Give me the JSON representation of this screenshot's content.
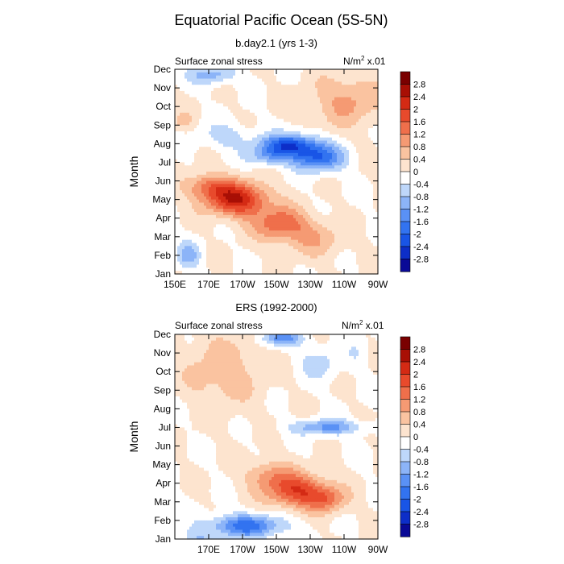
{
  "title": "Equatorial Pacific Ocean (5S-5N)",
  "units_base": "N/m",
  "units_exp": "2",
  "units_scale": " x.01",
  "colors": [
    "#0a0a96",
    "#0d2ec8",
    "#1955e6",
    "#3273f0",
    "#5a91f5",
    "#8cb4f8",
    "#bed7fa",
    "#ffffff",
    "#fde4cf",
    "#fac3a0",
    "#f59a73",
    "#ef6f4b",
    "#e84a2c",
    "#d42a14",
    "#a80f05",
    "#7a0000"
  ],
  "colorbar_labels": [
    "2.8",
    "2.4",
    "2",
    "1.6",
    "1.2",
    "0.8",
    "0.4",
    "0",
    "-0.4",
    "-0.8",
    "-1.2",
    "-1.6",
    "-2",
    "-2.4",
    "-2.8"
  ],
  "chart_data": [
    {
      "type": "heatmap",
      "subtitle": "b.day2.1 (yrs 1-3)",
      "left_label": "Surface zonal stress",
      "ylabel": "Month",
      "y_ticks": [
        "Jan",
        "Feb",
        "Mar",
        "Apr",
        "May",
        "Jun",
        "Jul",
        "Aug",
        "Sep",
        "Oct",
        "Nov",
        "Dec"
      ],
      "x_ticks": [
        "150E",
        "170E",
        "170W",
        "150W",
        "130W",
        "110W",
        "90W"
      ],
      "x_range": [
        150,
        270
      ],
      "y_range": [
        1,
        12
      ],
      "levels": [
        -2.8,
        -2.4,
        -2.0,
        -1.6,
        -1.2,
        -0.8,
        -0.4,
        0,
        0.4,
        0.8,
        1.2,
        1.6,
        2.0,
        2.4,
        2.8
      ],
      "features": [
        {
          "lon": 187,
          "month": 5.0,
          "amp": 2.3,
          "wlon": 18,
          "wmonth": 0.9
        },
        {
          "lon": 212,
          "month": 3.7,
          "amp": 1.4,
          "wlon": 16,
          "wmonth": 0.9
        },
        {
          "lon": 232,
          "month": 2.9,
          "amp": 0.7,
          "wlon": 18,
          "wmonth": 1.0
        },
        {
          "lon": 170,
          "month": 5.7,
          "amp": 1.2,
          "wlon": 14,
          "wmonth": 0.7
        },
        {
          "lon": 218,
          "month": 7.9,
          "amp": -2.3,
          "wlon": 17,
          "wmonth": 0.6
        },
        {
          "lon": 235,
          "month": 7.2,
          "amp": -1.8,
          "wlon": 15,
          "wmonth": 0.7
        },
        {
          "lon": 205,
          "month": 7.3,
          "amp": -0.9,
          "wlon": 12,
          "wmonth": 0.5
        },
        {
          "lon": 180,
          "month": 8.4,
          "amp": -0.6,
          "wlon": 15,
          "wmonth": 0.7
        },
        {
          "lon": 158,
          "month": 2.0,
          "amp": -1.0,
          "wlon": 7,
          "wmonth": 0.7
        },
        {
          "lon": 172,
          "month": 11.7,
          "amp": -1.0,
          "wlon": 14,
          "wmonth": 0.5
        },
        {
          "lon": 252,
          "month": 10.3,
          "amp": 0.9,
          "wlon": 20,
          "wmonth": 1.4
        },
        {
          "lon": 155,
          "month": 9.2,
          "amp": 0.5,
          "wlon": 6,
          "wmonth": 0.5
        }
      ],
      "value_range": [
        -2.8,
        2.8
      ]
    },
    {
      "type": "heatmap",
      "subtitle": "ERS (1992-2000)",
      "left_label": "Surface zonal stress",
      "ylabel": "Month",
      "y_ticks": [
        "Jan",
        "Feb",
        "Mar",
        "Apr",
        "May",
        "Jun",
        "Jul",
        "Aug",
        "Sep",
        "Oct",
        "Nov",
        "Dec"
      ],
      "x_ticks": [
        "170E",
        "170W",
        "150W",
        "130W",
        "110W",
        "90W"
      ],
      "x_range": [
        150,
        270
      ],
      "y_range": [
        1,
        12
      ],
      "levels": [
        -2.8,
        -2.4,
        -2.0,
        -1.6,
        -1.2,
        -0.8,
        -0.4,
        0,
        0.4,
        0.8,
        1.2,
        1.6,
        2.0,
        2.4,
        2.8
      ],
      "features": [
        {
          "lon": 222,
          "month": 3.6,
          "amp": 1.9,
          "wlon": 18,
          "wmonth": 0.9
        },
        {
          "lon": 240,
          "month": 3.1,
          "amp": 1.1,
          "wlon": 12,
          "wmonth": 0.7
        },
        {
          "lon": 205,
          "month": 4.5,
          "amp": 0.8,
          "wlon": 14,
          "wmonth": 0.8
        },
        {
          "lon": 178,
          "month": 10.0,
          "amp": 0.7,
          "wlon": 22,
          "wmonth": 2.0
        },
        {
          "lon": 192,
          "month": 1.7,
          "amp": -1.8,
          "wlon": 22,
          "wmonth": 0.6
        },
        {
          "lon": 240,
          "month": 7.0,
          "amp": -1.3,
          "wlon": 20,
          "wmonth": 0.4
        },
        {
          "lon": 213,
          "month": 11.8,
          "amp": -1.4,
          "wlon": 12,
          "wmonth": 0.4
        },
        {
          "lon": 235,
          "month": 10.5,
          "amp": -0.6,
          "wlon": 12,
          "wmonth": 0.9
        },
        {
          "lon": 163,
          "month": 1.0,
          "amp": -0.7,
          "wlon": 10,
          "wmonth": 0.5
        },
        {
          "lon": 258,
          "month": 11.0,
          "amp": -0.3,
          "wlon": 6,
          "wmonth": 0.8
        }
      ],
      "value_range": [
        -2.8,
        2.8
      ]
    }
  ]
}
